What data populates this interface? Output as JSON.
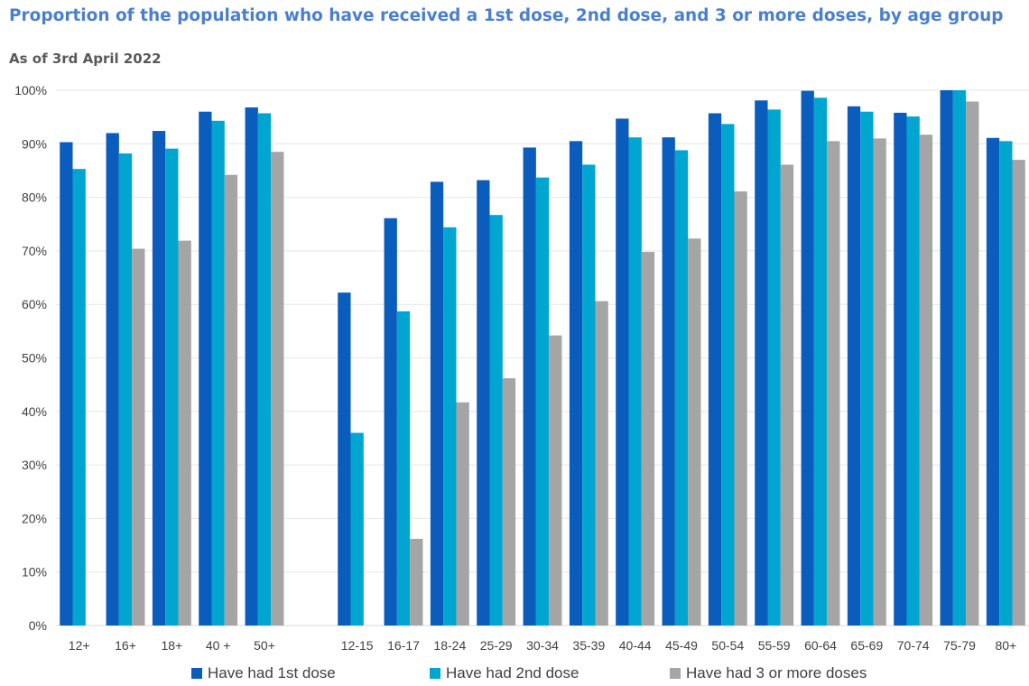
{
  "header": {
    "title": "Proportion of the population who have received a 1st dose, 2nd dose, and 3 or more doses, by age group",
    "subtitle": "As of 3rd April 2022"
  },
  "colors": {
    "dose1": "#0a5cbd",
    "dose2": "#00a6d0",
    "dose3": "#a5a5a5",
    "grid": "#e6e6e6"
  },
  "chart_data": {
    "type": "bar",
    "title": "Proportion of the population who have received a 1st dose, 2nd dose, and 3 or more doses, by age group",
    "subtitle": "As of 3rd April 2022",
    "xlabel": "",
    "ylabel": "",
    "ylim": [
      0,
      100
    ],
    "yticks": [
      "0%",
      "10%",
      "20%",
      "30%",
      "40%",
      "50%",
      "60%",
      "70%",
      "80%",
      "90%",
      "100%"
    ],
    "grid": true,
    "legend_position": "bottom",
    "categories": [
      "12+",
      "16+",
      "18+",
      "40 +",
      "50+",
      "",
      "12-15",
      "16-17",
      "18-24",
      "25-29",
      "30-34",
      "35-39",
      "40-44",
      "45-49",
      "50-54",
      "55-59",
      "60-64",
      "65-69",
      "70-74",
      "75-79",
      "80+"
    ],
    "series": [
      {
        "name": "Have had 1st dose",
        "values": [
          90.3,
          92.0,
          92.4,
          96.0,
          96.8,
          null,
          62.2,
          76.1,
          82.9,
          83.2,
          89.3,
          90.5,
          94.7,
          91.2,
          95.7,
          98.1,
          99.9,
          97.0,
          95.8,
          100.0,
          91.1
        ]
      },
      {
        "name": "Have had 2nd dose",
        "values": [
          85.3,
          88.2,
          89.1,
          94.3,
          95.7,
          null,
          36.0,
          58.7,
          74.4,
          76.7,
          83.7,
          86.1,
          91.2,
          88.8,
          93.7,
          96.4,
          98.6,
          96.0,
          95.1,
          100.0,
          90.5
        ]
      },
      {
        "name": "Have had 3 or more doses",
        "values": [
          null,
          70.4,
          71.9,
          84.2,
          88.5,
          null,
          null,
          16.2,
          41.7,
          46.2,
          54.2,
          60.6,
          69.8,
          72.3,
          81.1,
          86.1,
          90.5,
          91.0,
          91.7,
          97.9,
          87.0
        ]
      }
    ]
  }
}
